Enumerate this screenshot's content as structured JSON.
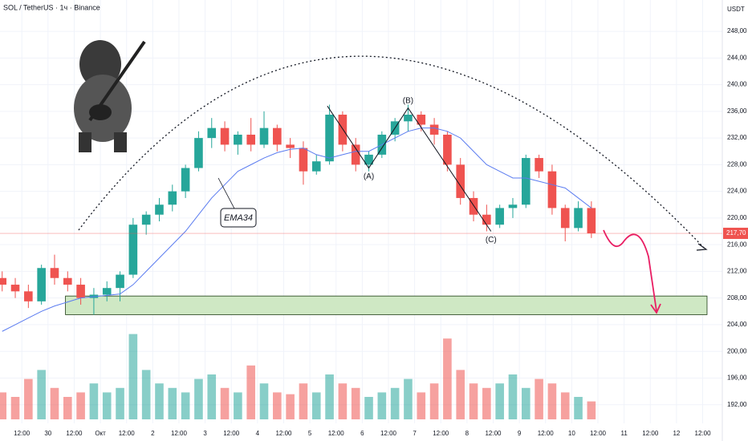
{
  "chart_data": {
    "type": "candlestick",
    "title": "SOL / TetherUS · 1ч · Binance",
    "currency": "USDT",
    "last_price": {
      "value": 217.7,
      "label": "217,70"
    },
    "up_color": "#26a69a",
    "down_color": "#ef5350",
    "x": [
      3,
      9,
      15,
      21,
      27,
      33,
      39,
      45,
      51,
      57,
      63,
      69,
      75,
      81,
      87,
      93,
      99,
      105,
      111,
      117,
      123,
      129,
      135,
      141,
      147,
      153,
      159,
      165,
      171,
      177,
      183,
      189,
      195,
      201,
      207,
      213,
      219,
      225,
      231,
      237,
      243,
      249,
      255,
      261,
      267,
      273
    ],
    "open": [
      211,
      210,
      209,
      207.5,
      212.5,
      211,
      210,
      208,
      208.5,
      209.5,
      211.5,
      219,
      220.5,
      222,
      224,
      227.5,
      232,
      233.5,
      231,
      232.5,
      231,
      233.5,
      231,
      230.5,
      227,
      228.5,
      235.5,
      231,
      228,
      229.5,
      232.5,
      234.5,
      235.5,
      234,
      232.5,
      228,
      223,
      220.5,
      219,
      221.5,
      222,
      229,
      227,
      221.5,
      218.5,
      221.5
    ],
    "high": [
      212,
      211,
      210,
      213,
      214.5,
      212,
      211,
      209.5,
      210.5,
      212,
      220,
      221,
      223,
      225,
      228,
      233,
      235,
      234.5,
      233,
      235,
      236,
      234,
      232,
      231.5,
      229.5,
      237,
      236,
      232,
      230,
      233,
      235,
      237,
      236,
      235,
      233,
      229,
      224,
      222,
      222,
      223,
      229.5,
      229.5,
      228,
      222,
      222.5,
      222.5
    ],
    "low": [
      209,
      208,
      206.5,
      207,
      210,
      209,
      207,
      205.5,
      207.5,
      207.5,
      211,
      217.5,
      219.5,
      221,
      223,
      227,
      230.5,
      230,
      229.5,
      230,
      230.5,
      230,
      229,
      225,
      226.5,
      228,
      230,
      227,
      227,
      229,
      231.5,
      233,
      233,
      231,
      227,
      222,
      219.5,
      218,
      218.5,
      220,
      221.5,
      226,
      220.5,
      216.5,
      218,
      217
    ],
    "close": [
      210,
      209,
      207.5,
      212.5,
      211,
      210,
      208,
      208.5,
      209.5,
      211.5,
      219,
      220.5,
      222,
      224,
      227.5,
      232,
      233.5,
      231,
      232.5,
      231,
      233.5,
      231,
      230.5,
      227,
      228.5,
      235.5,
      231,
      228,
      229.5,
      232.5,
      234.5,
      235.5,
      234,
      232.5,
      228,
      223,
      220.5,
      219,
      221.5,
      222,
      229,
      227,
      221.5,
      218.5,
      221.5,
      217.7
    ],
    "ema": {
      "name": "EMA34",
      "color": "#5b7cf0",
      "values": [
        203,
        204,
        205,
        206,
        206.8,
        207.4,
        208,
        208.2,
        208.4,
        208.6,
        210,
        212,
        214,
        216,
        218,
        220.5,
        223,
        225,
        227,
        228,
        229,
        229.8,
        230.3,
        230.5,
        229.5,
        229,
        229.5,
        230,
        230,
        231,
        232,
        233,
        233.5,
        233.5,
        233,
        232,
        230,
        228,
        227,
        226,
        226,
        225.5,
        225,
        224.5,
        223,
        221.5
      ]
    },
    "volume": [
      30,
      25,
      45,
      55,
      35,
      25,
      30,
      40,
      30,
      35,
      95,
      55,
      40,
      35,
      30,
      45,
      50,
      35,
      30,
      60,
      40,
      30,
      28,
      40,
      30,
      50,
      40,
      35,
      25,
      30,
      35,
      45,
      30,
      40,
      90,
      55,
      40,
      35,
      40,
      50,
      35,
      45,
      40,
      30,
      25,
      20
    ],
    "vlim": [
      0,
      100
    ],
    "zone": {
      "x": [
        32,
        326
      ],
      "y": [
        205.5,
        208.3
      ],
      "color": "#cfe8c4"
    },
    "wave": {
      "x": [
        152,
        171,
        189,
        227
      ],
      "y": [
        236.8,
        227.5,
        236.5,
        218
      ],
      "labels": [
        null,
        "(A)",
        "(B)",
        "(C)"
      ]
    },
    "xlim": [
      2,
      333
    ],
    "ylim": [
      189.8,
      252.7
    ],
    "xticks": [
      {
        "value": 12,
        "label": "12:00"
      },
      {
        "value": 24,
        "label": "30"
      },
      {
        "value": 36,
        "label": "12:00"
      },
      {
        "value": 48,
        "label": "Окт"
      },
      {
        "value": 60,
        "label": "12:00"
      },
      {
        "value": 72,
        "label": "2"
      },
      {
        "value": 84,
        "label": "12:00"
      },
      {
        "value": 96,
        "label": "3"
      },
      {
        "value": 108,
        "label": "12:00"
      },
      {
        "value": 120,
        "label": "4"
      },
      {
        "value": 132,
        "label": "12:00"
      },
      {
        "value": 144,
        "label": "5"
      },
      {
        "value": 156,
        "label": "12:00"
      },
      {
        "value": 168,
        "label": "6"
      },
      {
        "value": 180,
        "label": "12:00"
      },
      {
        "value": 192,
        "label": "7"
      },
      {
        "value": 204,
        "label": "12:00"
      },
      {
        "value": 216,
        "label": "8"
      },
      {
        "value": 228,
        "label": "12:00"
      },
      {
        "value": 240,
        "label": "9"
      },
      {
        "value": 252,
        "label": "12:00"
      },
      {
        "value": 264,
        "label": "10"
      },
      {
        "value": 276,
        "label": "12:00"
      },
      {
        "value": 288,
        "label": "11"
      },
      {
        "value": 300,
        "label": "12:00"
      },
      {
        "value": 312,
        "label": "12"
      },
      {
        "value": 324,
        "label": "12:00"
      }
    ],
    "yticks": [
      {
        "value": 248,
        "label": "248,00"
      },
      {
        "value": 244,
        "label": "244,00"
      },
      {
        "value": 240,
        "label": "240,00"
      },
      {
        "value": 236,
        "label": "236,00"
      },
      {
        "value": 232,
        "label": "232,00"
      },
      {
        "value": 228,
        "label": "228,00"
      },
      {
        "value": 224,
        "label": "224,00"
      },
      {
        "value": 220,
        "label": "220,00"
      },
      {
        "value": 216,
        "label": "216,00"
      },
      {
        "value": 212,
        "label": "212,00"
      },
      {
        "value": 208,
        "label": "208,00"
      },
      {
        "value": 204,
        "label": "204,00"
      },
      {
        "value": 200,
        "label": "200,00"
      },
      {
        "value": 196,
        "label": "196,00"
      },
      {
        "value": 192,
        "label": "192,00"
      }
    ],
    "grid": true
  }
}
